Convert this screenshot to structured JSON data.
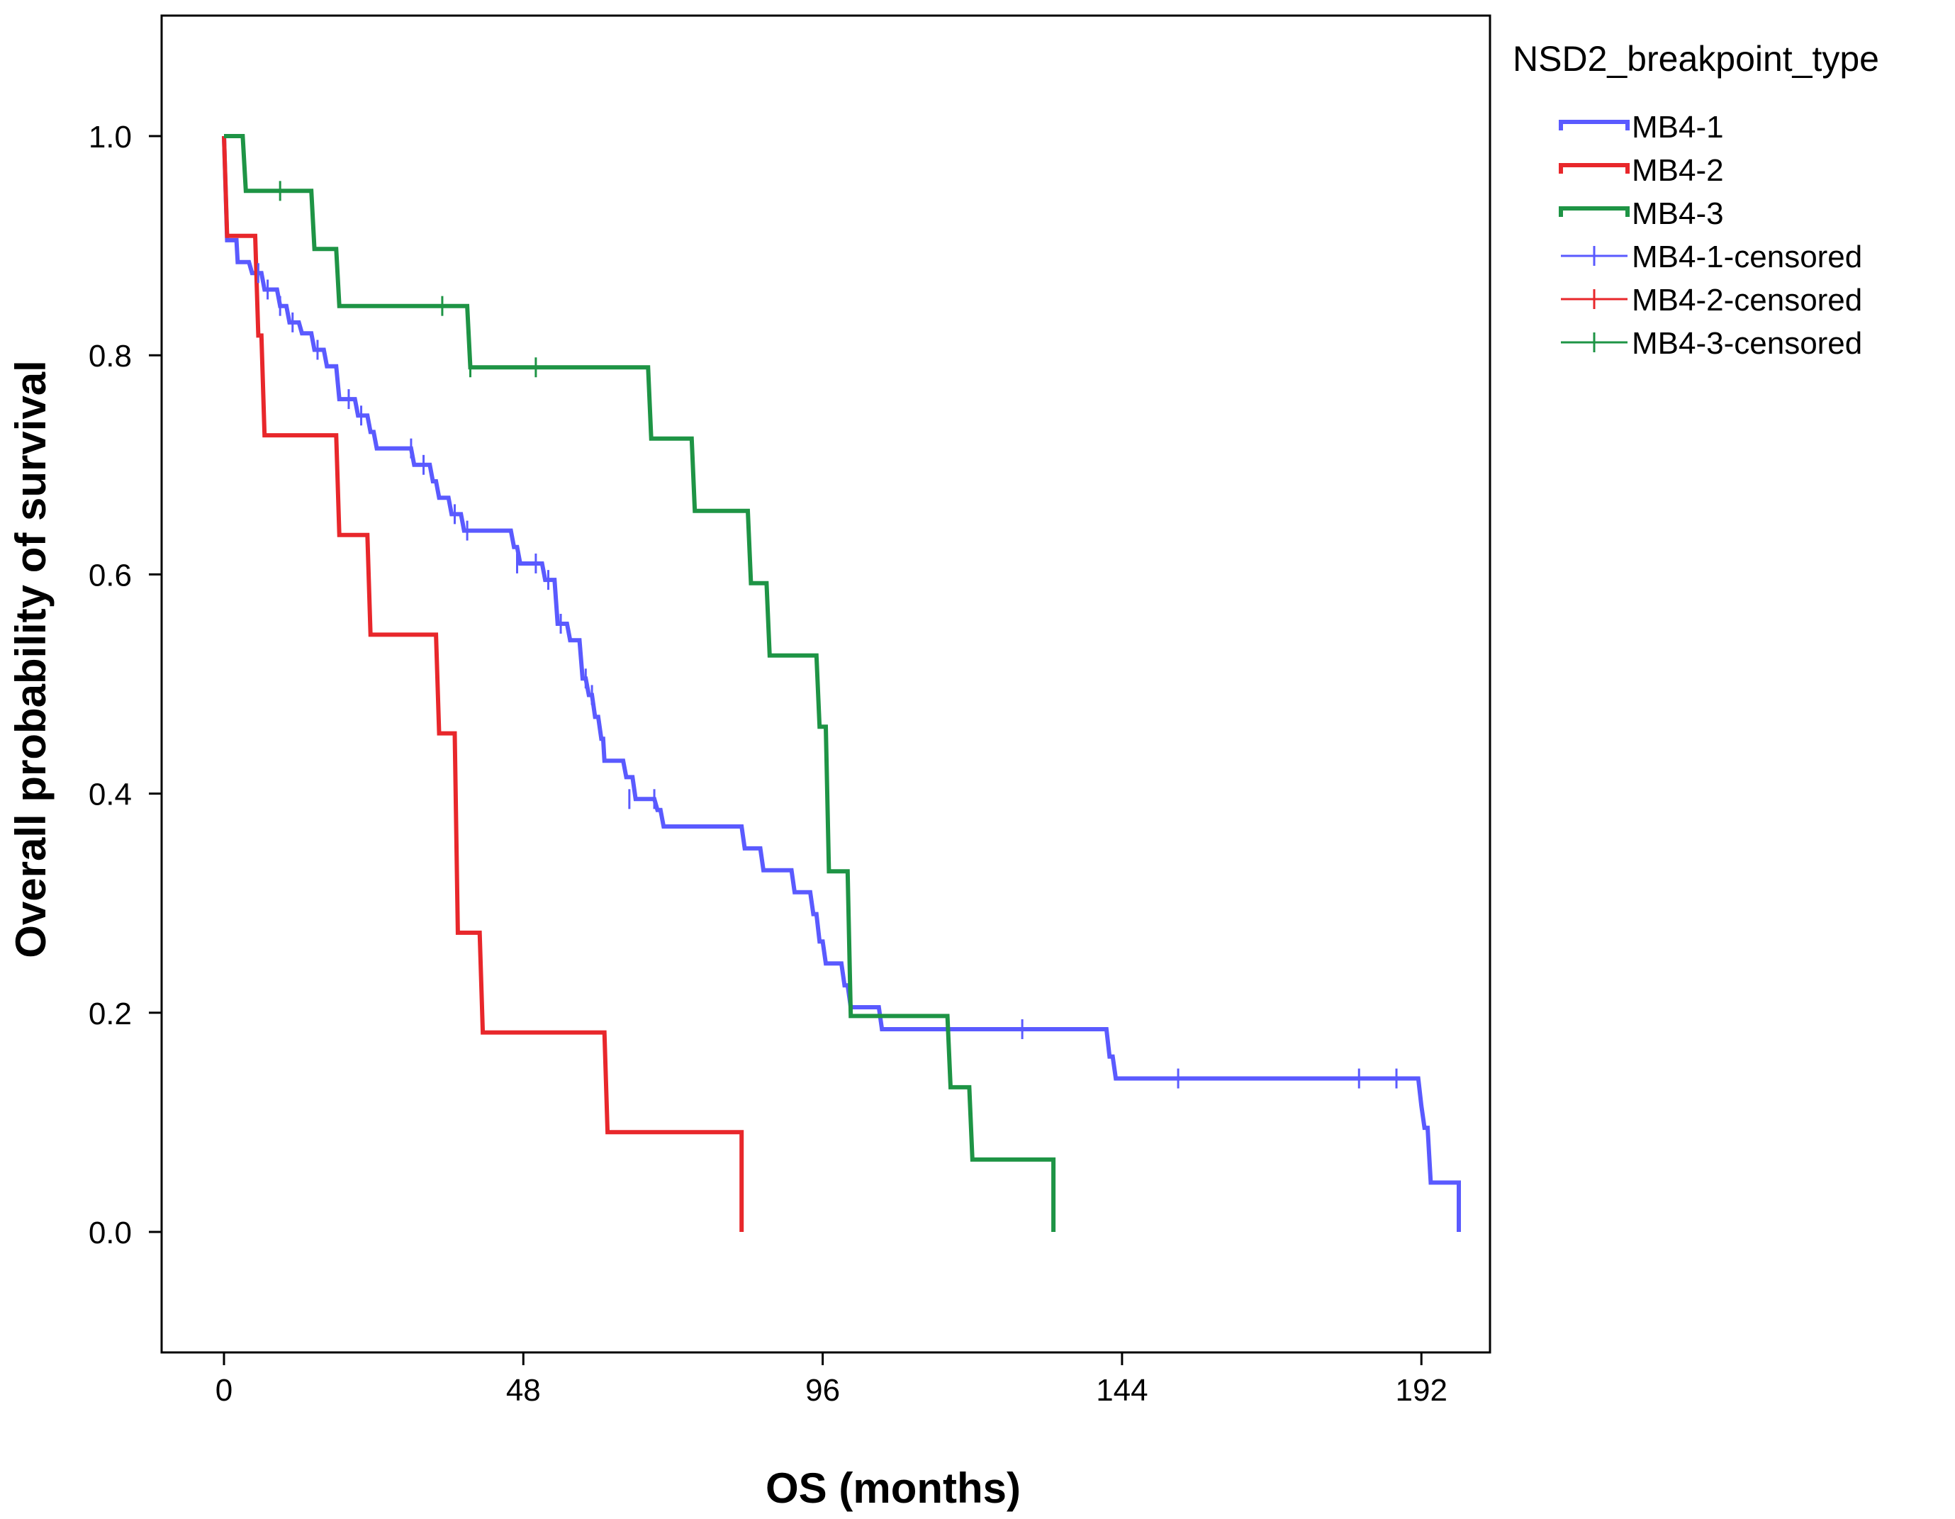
{
  "chart_data": {
    "type": "line",
    "subtype": "kaplan-meier",
    "title": "",
    "xlabel": "OS (months)",
    "ylabel": "Overall probability of survival",
    "xlim": [
      -10,
      203
    ],
    "ylim": [
      -0.11,
      1.11
    ],
    "xticks": [
      0,
      48,
      96,
      144,
      192
    ],
    "yticks": [
      0.0,
      0.2,
      0.4,
      0.6,
      0.8,
      1.0
    ],
    "xtick_labels": [
      "0",
      "48",
      "96",
      "144",
      "192"
    ],
    "ytick_labels": [
      "0.0",
      "0.2",
      "0.4",
      "0.6",
      "0.8",
      "1.0"
    ],
    "grid": false,
    "legend": {
      "title": "NSD2_breakpoint_type",
      "position": "outside-top-right",
      "entries": [
        {
          "label": "MB4-1",
          "kind": "line",
          "series": "MB4-1"
        },
        {
          "label": "MB4-2",
          "kind": "line",
          "series": "MB4-2"
        },
        {
          "label": "MB4-3",
          "kind": "line",
          "series": "MB4-3"
        },
        {
          "label": "MB4-1-censored",
          "kind": "censor",
          "series": "MB4-1"
        },
        {
          "label": "MB4-2-censored",
          "kind": "censor",
          "series": "MB4-2"
        },
        {
          "label": "MB4-3-censored",
          "kind": "censor",
          "series": "MB4-3"
        }
      ]
    },
    "series": [
      {
        "name": "MB4-1",
        "color": "#5a5aff",
        "steps": [
          [
            0,
            1.0
          ],
          [
            0.5,
            0.905
          ],
          [
            2,
            0.905
          ],
          [
            2.2,
            0.885
          ],
          [
            4,
            0.885
          ],
          [
            4.5,
            0.875
          ],
          [
            6,
            0.875
          ],
          [
            6.5,
            0.86
          ],
          [
            8.5,
            0.86
          ],
          [
            9,
            0.845
          ],
          [
            10,
            0.845
          ],
          [
            10.5,
            0.83
          ],
          [
            12,
            0.83
          ],
          [
            12.5,
            0.82
          ],
          [
            14,
            0.82
          ],
          [
            14.5,
            0.805
          ],
          [
            16,
            0.805
          ],
          [
            16.5,
            0.79
          ],
          [
            18,
            0.79
          ],
          [
            18.5,
            0.76
          ],
          [
            21,
            0.76
          ],
          [
            21.5,
            0.745
          ],
          [
            23,
            0.745
          ],
          [
            23.5,
            0.73
          ],
          [
            24,
            0.73
          ],
          [
            24.5,
            0.715
          ],
          [
            30,
            0.715
          ],
          [
            30.5,
            0.7
          ],
          [
            33,
            0.7
          ],
          [
            33.5,
            0.685
          ],
          [
            34,
            0.685
          ],
          [
            34.5,
            0.67
          ],
          [
            36,
            0.67
          ],
          [
            36.5,
            0.655
          ],
          [
            38,
            0.655
          ],
          [
            38.5,
            0.64
          ],
          [
            46,
            0.64
          ],
          [
            46.5,
            0.625
          ],
          [
            47,
            0.625
          ],
          [
            47.5,
            0.61
          ],
          [
            51,
            0.61
          ],
          [
            51.5,
            0.595
          ],
          [
            53,
            0.595
          ],
          [
            53.5,
            0.555
          ],
          [
            55,
            0.555
          ],
          [
            55.5,
            0.54
          ],
          [
            57,
            0.54
          ],
          [
            57.5,
            0.505
          ],
          [
            58,
            0.505
          ],
          [
            58.5,
            0.49
          ],
          [
            59,
            0.49
          ],
          [
            59.5,
            0.47
          ],
          [
            60,
            0.47
          ],
          [
            60.5,
            0.45
          ],
          [
            60.8,
            0.45
          ],
          [
            61,
            0.43
          ],
          [
            64,
            0.43
          ],
          [
            64.5,
            0.415
          ],
          [
            65.5,
            0.415
          ],
          [
            66,
            0.395
          ],
          [
            69,
            0.395
          ],
          [
            69.5,
            0.385
          ],
          [
            70,
            0.385
          ],
          [
            70.5,
            0.37
          ],
          [
            83,
            0.37
          ],
          [
            83.5,
            0.35
          ],
          [
            86,
            0.35
          ],
          [
            86.5,
            0.33
          ],
          [
            91,
            0.33
          ],
          [
            91.5,
            0.31
          ],
          [
            94,
            0.31
          ],
          [
            94.5,
            0.29
          ],
          [
            95,
            0.29
          ],
          [
            95.5,
            0.265
          ],
          [
            96,
            0.265
          ],
          [
            96.5,
            0.245
          ],
          [
            99,
            0.245
          ],
          [
            99.5,
            0.225
          ],
          [
            100,
            0.225
          ],
          [
            100.5,
            0.205
          ],
          [
            105,
            0.205
          ],
          [
            105.5,
            0.185
          ],
          [
            141.5,
            0.185
          ],
          [
            142,
            0.16
          ],
          [
            142.5,
            0.16
          ],
          [
            143,
            0.14
          ],
          [
            191.5,
            0.14
          ],
          [
            192,
            0.115
          ],
          [
            192.5,
            0.095
          ],
          [
            193,
            0.095
          ],
          [
            193.5,
            0.045
          ],
          [
            198,
            0.045
          ],
          [
            198,
            0.0
          ]
        ],
        "censored": [
          [
            5.5,
            0.875
          ],
          [
            7,
            0.86
          ],
          [
            9,
            0.845
          ],
          [
            11,
            0.83
          ],
          [
            15,
            0.805
          ],
          [
            20,
            0.76
          ],
          [
            22,
            0.745
          ],
          [
            30,
            0.715
          ],
          [
            32,
            0.7
          ],
          [
            37,
            0.655
          ],
          [
            39,
            0.64
          ],
          [
            47,
            0.61
          ],
          [
            50,
            0.61
          ],
          [
            52,
            0.595
          ],
          [
            54,
            0.555
          ],
          [
            58,
            0.505
          ],
          [
            59,
            0.49
          ],
          [
            65,
            0.395
          ],
          [
            69,
            0.395
          ],
          [
            128,
            0.185
          ],
          [
            153,
            0.14
          ],
          [
            182,
            0.14
          ],
          [
            188,
            0.14
          ]
        ]
      },
      {
        "name": "MB4-2",
        "color": "#e8272b",
        "steps": [
          [
            0,
            1.0
          ],
          [
            0.5,
            0.909
          ],
          [
            5,
            0.909
          ],
          [
            5.5,
            0.818
          ],
          [
            6,
            0.818
          ],
          [
            6.5,
            0.727
          ],
          [
            18,
            0.727
          ],
          [
            18.5,
            0.636
          ],
          [
            23,
            0.636
          ],
          [
            23.5,
            0.545
          ],
          [
            34,
            0.545
          ],
          [
            34.5,
            0.455
          ],
          [
            37,
            0.455
          ],
          [
            37.5,
            0.273
          ],
          [
            41,
            0.273
          ],
          [
            41.5,
            0.182
          ],
          [
            61,
            0.182
          ],
          [
            61.5,
            0.091
          ],
          [
            83,
            0.091
          ],
          [
            83,
            0.0
          ]
        ],
        "censored": []
      },
      {
        "name": "MB4-3",
        "color": "#1e9445",
        "steps": [
          [
            0,
            1.0
          ],
          [
            3,
            1.0
          ],
          [
            3.5,
            0.95
          ],
          [
            14,
            0.95
          ],
          [
            14.5,
            0.897
          ],
          [
            18,
            0.897
          ],
          [
            18.5,
            0.845
          ],
          [
            39,
            0.845
          ],
          [
            39.5,
            0.789
          ],
          [
            68,
            0.789
          ],
          [
            68.5,
            0.724
          ],
          [
            75,
            0.724
          ],
          [
            75.5,
            0.658
          ],
          [
            84,
            0.658
          ],
          [
            84.5,
            0.592
          ],
          [
            87,
            0.592
          ],
          [
            87.5,
            0.526
          ],
          [
            95,
            0.526
          ],
          [
            95.5,
            0.461
          ],
          [
            96.5,
            0.461
          ],
          [
            97,
            0.329
          ],
          [
            100,
            0.329
          ],
          [
            100.5,
            0.197
          ],
          [
            116,
            0.197
          ],
          [
            116.5,
            0.132
          ],
          [
            119.5,
            0.132
          ],
          [
            120,
            0.066
          ],
          [
            133,
            0.066
          ],
          [
            133,
            0.0
          ]
        ],
        "censored": [
          [
            9,
            0.95
          ],
          [
            35,
            0.845
          ],
          [
            39.5,
            0.789
          ],
          [
            50,
            0.789
          ]
        ]
      }
    ]
  }
}
